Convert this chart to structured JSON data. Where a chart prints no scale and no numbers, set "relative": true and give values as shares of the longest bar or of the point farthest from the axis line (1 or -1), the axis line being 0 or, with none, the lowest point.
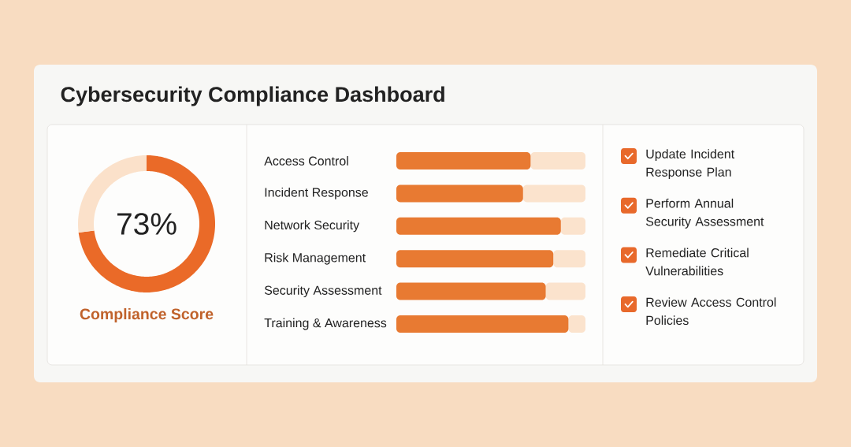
{
  "chart_data": [
    {
      "type": "donut",
      "title": "Cybersecurity Compliance Dashboard",
      "categories": [
        null,
        null
      ],
      "values": [
        73,
        27
      ],
      "colors": [
        "#ea6a28",
        "#fbe1ca"
      ],
      "annotations": [
        "73%",
        "Compliance Score"
      ]
    },
    {
      "type": "bar",
      "orientation": "horizontal",
      "stacked": true,
      "relative": true,
      "categories": [
        "Access Control",
        "Incident Response",
        "Network Security",
        "Risk Management",
        "Security Assessment",
        "Training & Awareness"
      ],
      "series": [
        {
          "color": "#e87a32",
          "values": [
            0.71,
            0.67,
            0.87,
            0.83,
            0.79,
            0.91
          ]
        },
        {
          "color": "#fbe3cd",
          "values": [
            0.29,
            0.33,
            0.13,
            0.17,
            0.21,
            0.09
          ]
        }
      ]
    },
    {
      "type": "other",
      "annotations": [
        "Update Incident Response Plan",
        "Perform Annual Security Assessment",
        "Remediate Critical Vulnerabilities",
        "Review Access Control Policies"
      ]
    }
  ]
}
